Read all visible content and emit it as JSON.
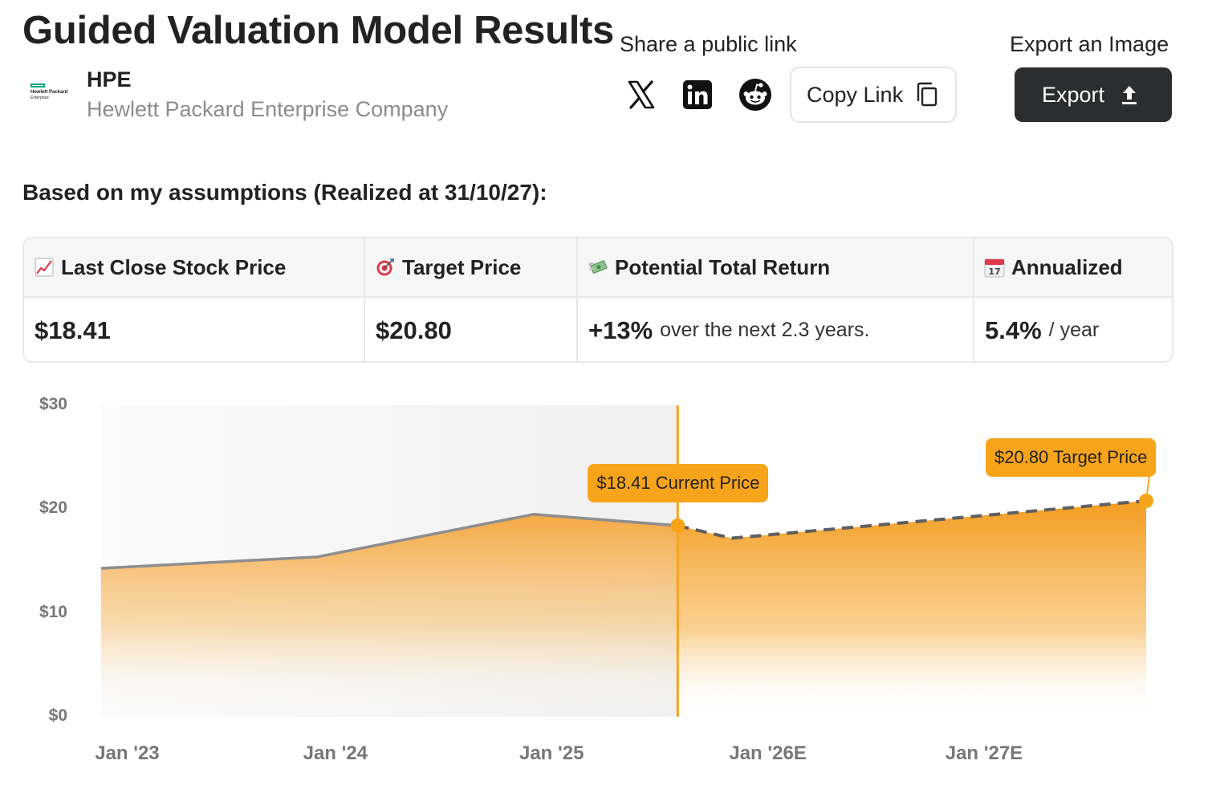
{
  "title": "Guided Valuation Model Results",
  "company": {
    "ticker": "HPE",
    "name": "Hewlett Packard Enterprise Company",
    "logo_line1": "Hewlett Packard",
    "logo_line2": "Enterprise",
    "logo_color": "#01a982"
  },
  "share": {
    "label": "Share a public link",
    "icons": [
      "x-icon",
      "linkedin-icon",
      "reddit-icon"
    ],
    "copy_label": "Copy Link"
  },
  "export": {
    "label": "Export an Image",
    "button_label": "Export"
  },
  "assumptions_text": "Based on my assumptions (Realized at 31/10/27):",
  "summary": {
    "last_close": {
      "header": "Last Close Stock Price",
      "icon": "chart-up-icon",
      "value": "$18.41"
    },
    "target": {
      "header": "Target Price",
      "icon": "target-icon",
      "value": "$20.80"
    },
    "total_return": {
      "header": "Potential Total Return",
      "icon": "money-wings-icon",
      "value": "+13%",
      "suffix": "over the next 2.3 years."
    },
    "annualized": {
      "header": "Annualized",
      "icon": "calendar-icon",
      "value": "5.4%",
      "suffix": "/ year",
      "calendar_day": "17"
    }
  },
  "colors": {
    "accent": "#f8a41b",
    "dark_button": "#2b2d2e",
    "history_line": "#8e8e8e",
    "forecast_line": "#5f5f5f"
  },
  "chart_data": {
    "type": "area",
    "y_ticks": [
      "$0",
      "$10",
      "$20",
      "$30"
    ],
    "ylim": [
      0,
      30
    ],
    "x_ticks": [
      "Jan '23",
      "Jan '24",
      "Jan '25",
      "Jan '26E",
      "Jan '27E"
    ],
    "history": [
      {
        "x": "2022-12",
        "y": 14.3
      },
      {
        "x": "2023-12",
        "y": 15.4
      },
      {
        "x": "2024-12",
        "y": 19.5
      },
      {
        "x": "2025-08",
        "y": 18.41
      }
    ],
    "forecast": [
      {
        "x": "2025-08",
        "y": 18.41
      },
      {
        "x": "2025-11",
        "y": 17.2
      },
      {
        "x": "2027-10",
        "y": 20.8
      }
    ],
    "current_label": "$18.41 Current Price",
    "target_label": "$20.80 Target Price",
    "grid": false
  }
}
